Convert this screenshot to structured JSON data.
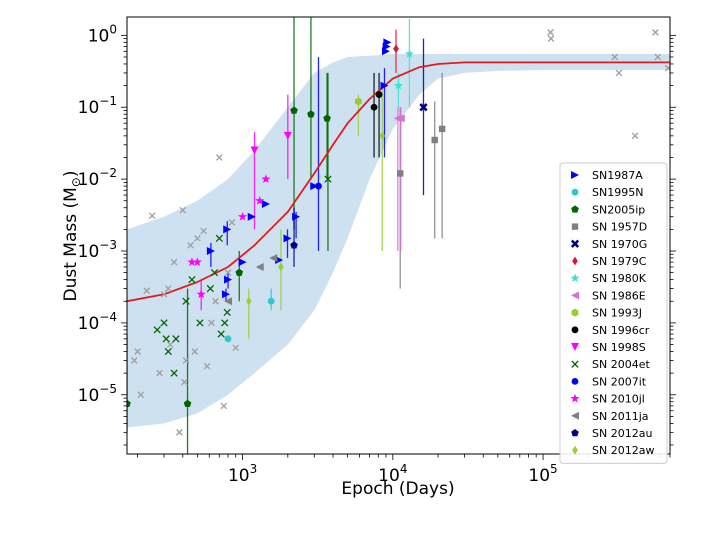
{
  "chart_data": {
    "type": "scatter",
    "title": "",
    "xlabel": "Epoch (Days)",
    "ylabel_prefix": "Dust Mass (M",
    "ylabel_sub": "⊙",
    "ylabel_suffix": ")",
    "xscale": "log",
    "yscale": "log",
    "xlim": [
      170,
      700000
    ],
    "ylim": [
      1.5e-06,
      1.8
    ],
    "grid": false,
    "legend_position": "lower-right",
    "x_ticks": [
      {
        "value": 1000,
        "base": "10",
        "exp": "3"
      },
      {
        "value": 10000,
        "base": "10",
        "exp": "4"
      },
      {
        "value": 100000,
        "base": "10",
        "exp": "5"
      }
    ],
    "y_ticks": [
      {
        "value": 1e-05,
        "base": "10",
        "exp": "−5"
      },
      {
        "value": 0.0001,
        "base": "10",
        "exp": "−4"
      },
      {
        "value": 0.001,
        "base": "10",
        "exp": "−3"
      },
      {
        "value": 0.01,
        "base": "10",
        "exp": "−2"
      },
      {
        "value": 0.1,
        "base": "10",
        "exp": "−1"
      },
      {
        "value": 1,
        "base": "10",
        "exp": "0"
      }
    ],
    "fit_curve": {
      "color": "#e41a1c",
      "band_color": "#a6c8e3",
      "points": [
        [
          170,
          0.0002
        ],
        [
          300,
          0.00025
        ],
        [
          500,
          0.00037
        ],
        [
          800,
          0.0006
        ],
        [
          1200,
          0.0012
        ],
        [
          2000,
          0.0035
        ],
        [
          3000,
          0.012
        ],
        [
          4000,
          0.03
        ],
        [
          5000,
          0.06
        ],
        [
          7000,
          0.13
        ],
        [
          10000,
          0.25
        ],
        [
          15000,
          0.36
        ],
        [
          20000,
          0.4
        ],
        [
          30000,
          0.42
        ],
        [
          50000,
          0.42
        ],
        [
          100000,
          0.42
        ],
        [
          700000,
          0.42
        ]
      ],
      "band_upper": [
        [
          170,
          0.002
        ],
        [
          300,
          0.003
        ],
        [
          500,
          0.005
        ],
        [
          800,
          0.01
        ],
        [
          1200,
          0.025
        ],
        [
          2000,
          0.1
        ],
        [
          3000,
          0.3
        ],
        [
          4000,
          0.42
        ],
        [
          5000,
          0.5
        ],
        [
          7000,
          0.52
        ],
        [
          10000,
          0.55
        ],
        [
          20000,
          0.55
        ],
        [
          100000,
          0.55
        ],
        [
          700000,
          0.55
        ]
      ],
      "band_lower": [
        [
          170,
          3.5e-06
        ],
        [
          300,
          4e-06
        ],
        [
          500,
          5.5e-06
        ],
        [
          800,
          1e-05
        ],
        [
          1200,
          2e-05
        ],
        [
          2000,
          5e-05
        ],
        [
          3000,
          0.00015
        ],
        [
          4000,
          0.0005
        ],
        [
          5000,
          0.0015
        ],
        [
          7000,
          0.01
        ],
        [
          10000,
          0.05
        ],
        [
          15000,
          0.15
        ],
        [
          20000,
          0.25
        ],
        [
          30000,
          0.3
        ],
        [
          50000,
          0.32
        ],
        [
          100000,
          0.33
        ],
        [
          700000,
          0.33
        ]
      ]
    },
    "background_points": {
      "label": "",
      "color": "#9e9e9e",
      "marker": "x",
      "points": [
        [
          190,
          3e-05
        ],
        [
          200,
          4e-05
        ],
        [
          210,
          1e-05
        ],
        [
          230,
          0.00028
        ],
        [
          250,
          0.0031
        ],
        [
          280,
          2e-05
        ],
        [
          300,
          0.00025
        ],
        [
          320,
          0.0003
        ],
        [
          330,
          5e-05
        ],
        [
          350,
          0.0007
        ],
        [
          380,
          3e-06
        ],
        [
          400,
          0.0037
        ],
        [
          410,
          1.5e-05
        ],
        [
          420,
          3e-05
        ],
        [
          450,
          0.0012
        ],
        [
          480,
          4e-05
        ],
        [
          500,
          0.0015
        ],
        [
          550,
          0.0019
        ],
        [
          580,
          2.5e-05
        ],
        [
          620,
          0.0001
        ],
        [
          660,
          0.0002
        ],
        [
          700,
          0.02
        ],
        [
          750,
          7e-06
        ],
        [
          800,
          0.0005
        ],
        [
          850,
          0.0025
        ],
        [
          900,
          4.5e-05
        ],
        [
          112000,
          1.1
        ],
        [
          113000,
          0.9
        ],
        [
          300000,
          0.5
        ],
        [
          320000,
          0.3
        ],
        [
          410000,
          0.04
        ],
        [
          560000,
          1.1
        ],
        [
          580000,
          0.5
        ],
        [
          680000,
          0.35
        ]
      ]
    },
    "series": [
      {
        "name": "SN1987A",
        "color": "#0000ff",
        "marker": "triangle-right",
        "points": [
          {
            "x": 615,
            "y": 0.001,
            "lo": 0.0006,
            "hi": 0.0013
          },
          {
            "x": 775,
            "y": 0.00025,
            "lo": 0.0002,
            "hi": 0.0003
          },
          {
            "x": 790,
            "y": 0.002,
            "lo": 0.0012,
            "hi": 0.0026
          },
          {
            "x": 800,
            "y": 0.0004,
            "lo": 0.0003,
            "hi": 0.0005
          },
          {
            "x": 1000,
            "y": 0.0007
          },
          {
            "x": 1150,
            "y": 0.003
          },
          {
            "x": 1430,
            "y": 0.0045
          },
          {
            "x": 1750,
            "y": 0.00075
          },
          {
            "x": 1990,
            "y": 0.0015,
            "lo": 0.0008,
            "hi": 0.002
          },
          {
            "x": 2270,
            "y": 0.003,
            "lo": 0.0015,
            "hi": 0.0035
          },
          {
            "x": 3000,
            "y": 0.008
          },
          {
            "x": 8800,
            "y": 0.2,
            "lo": 0.02,
            "hi": 0.35
          },
          {
            "x": 9000,
            "y": 0.6
          },
          {
            "x": 9100,
            "y": 0.7
          },
          {
            "x": 9200,
            "y": 0.8
          }
        ]
      },
      {
        "name": "SN1995N",
        "color": "#2ec8c8",
        "marker": "circle",
        "points": [
          {
            "x": 800,
            "y": 6e-05
          },
          {
            "x": 1550,
            "y": 0.0002,
            "lo": 0.00015,
            "hi": 0.0003
          }
        ]
      },
      {
        "name": "SN2005ip",
        "color": "#006400",
        "marker": "pentagon",
        "points": [
          {
            "x": 170,
            "y": 7.5e-06,
            "lo": 3e-06,
            "hi": 7e-05
          },
          {
            "x": 430,
            "y": 7.5e-06,
            "lo": 1.5e-06,
            "hi": 0.0003
          },
          {
            "x": 950,
            "y": 0.0005,
            "lo": 0.0002,
            "hi": 0.001
          },
          {
            "x": 2200,
            "y": 0.09,
            "lo": 0.002,
            "hi": 1.8
          },
          {
            "x": 2850,
            "y": 0.08,
            "lo": 0.01,
            "hi": 1.8
          },
          {
            "x": 3650,
            "y": 0.07,
            "lo": 0.01,
            "hi": 0.3
          }
        ]
      },
      {
        "name": "SN 1957D",
        "color": "#808080",
        "marker": "square",
        "points": [
          {
            "x": 11200,
            "y": 0.012,
            "lo": 0.0003,
            "hi": 0.1
          },
          {
            "x": 19000,
            "y": 0.035,
            "lo": 0.0015,
            "hi": 0.12
          },
          {
            "x": 21300,
            "y": 0.05,
            "lo": 0.0015,
            "hi": 0.3
          }
        ]
      },
      {
        "name": "SN 1970G",
        "color": "#00008b",
        "marker": "x-thick",
        "points": [
          {
            "x": 16000,
            "y": 0.1,
            "lo": 0.006,
            "hi": 0.9
          }
        ]
      },
      {
        "name": "SN 1979C",
        "color": "#dc143c",
        "marker": "diamond",
        "points": [
          {
            "x": 10500,
            "y": 0.65,
            "lo": 0.3,
            "hi": 1.2
          }
        ]
      },
      {
        "name": "SN 1980K",
        "color": "#40e0d0",
        "marker": "star",
        "points": [
          {
            "x": 10900,
            "y": 0.2,
            "lo": 0.1,
            "hi": 0.3
          },
          {
            "x": 12900,
            "y": 0.55,
            "lo": 0.1,
            "hi": 1.7
          }
        ]
      },
      {
        "name": "SN 1986E",
        "color": "#da70d6",
        "marker": "triangle-left",
        "points": [
          {
            "x": 10800,
            "y": 0.07,
            "lo": 0.001,
            "hi": 0.1
          },
          {
            "x": 11300,
            "y": 0.07,
            "lo": 0.001,
            "hi": 0.1
          }
        ]
      },
      {
        "name": "SN 1993J",
        "color": "#9acd32",
        "marker": "hexagon",
        "points": [
          {
            "x": 5900,
            "y": 0.12,
            "lo": 0.04,
            "hi": 0.15
          }
        ]
      },
      {
        "name": "SN 1996cr",
        "color": "#000000",
        "marker": "circle",
        "points": [
          {
            "x": 7500,
            "y": 0.1,
            "lo": 0.02,
            "hi": 0.3
          },
          {
            "x": 8100,
            "y": 0.15,
            "lo": 0.02,
            "hi": 0.3
          }
        ]
      },
      {
        "name": "SN 1998S",
        "color": "#ff00ff",
        "marker": "triangle-down",
        "points": [
          {
            "x": 1200,
            "y": 0.025,
            "lo": 0.002,
            "hi": 0.045
          },
          {
            "x": 2000,
            "y": 0.04,
            "lo": 0.01,
            "hi": 0.15
          }
        ]
      },
      {
        "name": "SN 2004et",
        "color": "#006400",
        "marker": "x",
        "points": [
          {
            "x": 270,
            "y": 8e-05
          },
          {
            "x": 300,
            "y": 0.0001
          },
          {
            "x": 310,
            "y": 6e-05
          },
          {
            "x": 320,
            "y": 4e-05
          },
          {
            "x": 350,
            "y": 2e-05
          },
          {
            "x": 360,
            "y": 6e-05
          },
          {
            "x": 420,
            "y": 0.0002
          },
          {
            "x": 460,
            "y": 0.0004
          },
          {
            "x": 520,
            "y": 0.0001
          },
          {
            "x": 610,
            "y": 0.0003
          },
          {
            "x": 650,
            "y": 0.0005
          },
          {
            "x": 700,
            "y": 0.0015
          },
          {
            "x": 720,
            "y": 7e-05
          },
          {
            "x": 760,
            "y": 0.0001
          },
          {
            "x": 790,
            "y": 0.00014
          },
          {
            "x": 3700,
            "y": 0.01,
            "lo": 0.001,
            "hi": 0.3
          }
        ]
      },
      {
        "name": "SN 2007it",
        "color": "#0000ff",
        "marker": "circle",
        "points": [
          {
            "x": 3200,
            "y": 0.008,
            "lo": 0.001,
            "hi": 0.5
          }
        ]
      },
      {
        "name": "SN 2010jl",
        "color": "#ff00ff",
        "marker": "star",
        "points": [
          {
            "x": 460,
            "y": 0.0007
          },
          {
            "x": 500,
            "y": 0.0007
          },
          {
            "x": 530,
            "y": 0.00025,
            "lo": 0.00015,
            "hi": 0.0004
          },
          {
            "x": 1000,
            "y": 0.003
          },
          {
            "x": 1300,
            "y": 0.005
          },
          {
            "x": 1430,
            "y": 0.01
          }
        ]
      },
      {
        "name": "SN 2011ja",
        "color": "#808080",
        "marker": "triangle-left",
        "points": [
          {
            "x": 800,
            "y": 0.0002
          },
          {
            "x": 1300,
            "y": 0.0006
          },
          {
            "x": 1600,
            "y": 0.0008
          }
        ]
      },
      {
        "name": "SN 2012au",
        "color": "#00008b",
        "marker": "pentagon",
        "points": [
          {
            "x": 2200,
            "y": 0.0012,
            "lo": 0.0006,
            "hi": 0.004
          }
        ]
      },
      {
        "name": "SN 2012aw",
        "color": "#9acd32",
        "marker": "diamond",
        "points": [
          {
            "x": 1100,
            "y": 0.0002,
            "lo": 6e-05,
            "hi": 0.0003
          },
          {
            "x": 1800,
            "y": 0.0006,
            "lo": 0.00015,
            "hi": 0.002
          },
          {
            "x": 8500,
            "y": 0.04,
            "lo": 0.001,
            "hi": 0.2
          }
        ]
      }
    ]
  }
}
